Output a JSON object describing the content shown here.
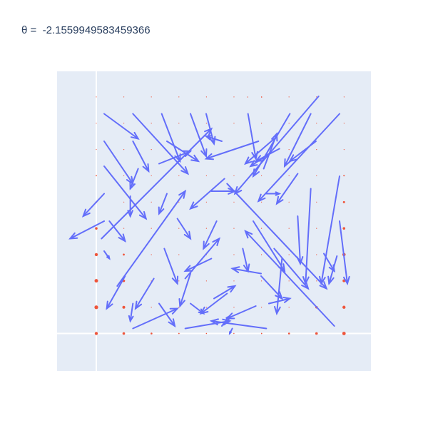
{
  "title": "θ =  -2.1559949583459366",
  "colors": {
    "paper": "#ffffff",
    "plot_bg": "#e5ecf6",
    "zeroline": "#ffffff",
    "arrow": "#636efa",
    "point": "#ef553b",
    "title_text": "#2a3f5f"
  },
  "chart_data": {
    "type": "quiver",
    "title": "θ =  -2.1559949583459366",
    "xlim": [
      -0.15,
      1.05
    ],
    "ylim": [
      -0.15,
      1.05
    ],
    "grid": false,
    "zeroline": true,
    "grid_points_x": [
      0,
      0.1053,
      0.2105,
      0.3158,
      0.4211,
      0.5263,
      0.6316,
      0.7368,
      0.8421,
      0.9474
    ],
    "grid_points_y": [
      0,
      0.1053,
      0.2105,
      0.3158,
      0.4211,
      0.5263,
      0.6316,
      0.7368,
      0.8421,
      0.9474
    ],
    "points": [
      {
        "x": 0,
        "y": 0,
        "s": 2.2
      },
      {
        "x": 0.105,
        "y": 0,
        "s": 1.8
      },
      {
        "x": 0.211,
        "y": 0,
        "s": 1.3
      },
      {
        "x": 0.316,
        "y": 0,
        "s": 0.9
      },
      {
        "x": 0.421,
        "y": 0,
        "s": 0.7
      },
      {
        "x": 0.526,
        "y": 0,
        "s": 0.7
      },
      {
        "x": 0.632,
        "y": 0,
        "s": 0.9
      },
      {
        "x": 0.737,
        "y": 0,
        "s": 1.3
      },
      {
        "x": 0.842,
        "y": 0,
        "s": 1.8
      },
      {
        "x": 0.947,
        "y": 0,
        "s": 2.4
      },
      {
        "x": 0,
        "y": 0.105,
        "s": 2.6
      },
      {
        "x": 0.105,
        "y": 0.105,
        "s": 2.0
      },
      {
        "x": 0.842,
        "y": 0.105,
        "s": 1.7
      },
      {
        "x": 0.947,
        "y": 0.105,
        "s": 2.2
      },
      {
        "x": 0,
        "y": 0.211,
        "s": 2.5
      },
      {
        "x": 0.105,
        "y": 0.211,
        "s": 1.8
      },
      {
        "x": 0.947,
        "y": 0.211,
        "s": 2.0
      },
      {
        "x": 0,
        "y": 0.316,
        "s": 2.2
      },
      {
        "x": 0.105,
        "y": 0.316,
        "s": 1.4
      },
      {
        "x": 0.947,
        "y": 0.316,
        "s": 2.3
      },
      {
        "x": 0,
        "y": 0.421,
        "s": 1.8
      },
      {
        "x": 0.947,
        "y": 0.421,
        "s": 1.8
      },
      {
        "x": 0,
        "y": 0.526,
        "s": 1.2
      },
      {
        "x": 0.947,
        "y": 0.526,
        "s": 1.5
      },
      {
        "x": 0,
        "y": 0.632,
        "s": 0.9
      },
      {
        "x": 0.947,
        "y": 0.632,
        "s": 1.0
      },
      {
        "x": 0.632,
        "y": 0.947,
        "s": 0.8
      },
      {
        "x": 0.579,
        "y": 0.947,
        "s": 0.7
      }
    ],
    "vectors": [
      {
        "x": 0.03,
        "y": 0.88,
        "u": 0.13,
        "v": -0.1
      },
      {
        "x": 0.14,
        "y": 0.88,
        "u": 0.21,
        "v": -0.24
      },
      {
        "x": 0.25,
        "y": 0.88,
        "u": 0.07,
        "v": -0.19
      },
      {
        "x": 0.36,
        "y": 0.88,
        "u": 0.06,
        "v": -0.17
      },
      {
        "x": 0.42,
        "y": 0.88,
        "u": 0.03,
        "v": -0.12
      },
      {
        "x": 0.58,
        "y": 0.88,
        "u": 0.03,
        "v": -0.18
      },
      {
        "x": 0.74,
        "y": 0.88,
        "u": -0.14,
        "v": -0.25
      },
      {
        "x": 0.82,
        "y": 0.88,
        "u": -0.1,
        "v": -0.21
      },
      {
        "x": 0.93,
        "y": 0.88,
        "u": -0.31,
        "v": -0.35
      },
      {
        "x": 0.03,
        "y": 0.77,
        "u": 0.11,
        "v": -0.17
      },
      {
        "x": 0.14,
        "y": 0.77,
        "u": 0.06,
        "v": -0.12
      },
      {
        "x": 0.27,
        "y": 0.77,
        "u": 0.12,
        "v": -0.08
      },
      {
        "x": 0.48,
        "y": 0.77,
        "u": -0.06,
        "v": 0.02
      },
      {
        "x": 0.62,
        "y": 0.77,
        "u": -0.2,
        "v": -0.07
      },
      {
        "x": 0.84,
        "y": 0.77,
        "u": -0.1,
        "v": -0.08
      },
      {
        "x": 0.03,
        "y": 0.67,
        "u": 0.16,
        "v": -0.21
      },
      {
        "x": 0.16,
        "y": 0.66,
        "u": -0.03,
        "v": -0.08
      },
      {
        "x": 0.24,
        "y": 0.68,
        "u": 0.12,
        "v": 0.05
      },
      {
        "x": 0.66,
        "y": 0.72,
        "u": -0.07,
        "v": -0.05
      },
      {
        "x": 0.77,
        "y": 0.64,
        "u": -0.08,
        "v": -0.12
      },
      {
        "x": 0.93,
        "y": 0.63,
        "u": -0.07,
        "v": -0.43
      },
      {
        "x": 0.03,
        "y": 0.56,
        "u": -0.08,
        "v": -0.09
      },
      {
        "x": 0.13,
        "y": 0.55,
        "u": 0.0,
        "v": -0.08
      },
      {
        "x": 0.27,
        "y": 0.56,
        "u": -0.03,
        "v": -0.08
      },
      {
        "x": 0.44,
        "y": 0.57,
        "u": 0.09,
        "v": 0.0
      },
      {
        "x": 0.65,
        "y": 0.56,
        "u": 0.05,
        "v": 0.0
      },
      {
        "x": 0.82,
        "y": 0.58,
        "u": -0.02,
        "v": -0.38
      },
      {
        "x": 0.03,
        "y": 0.45,
        "u": -0.13,
        "v": -0.07
      },
      {
        "x": 0.05,
        "y": 0.45,
        "u": 0.06,
        "v": -0.08
      },
      {
        "x": 0.31,
        "y": 0.46,
        "u": 0.05,
        "v": -0.08
      },
      {
        "x": 0.46,
        "y": 0.45,
        "u": -0.05,
        "v": -0.11
      },
      {
        "x": 0.6,
        "y": 0.45,
        "u": 0.12,
        "v": -0.2
      },
      {
        "x": 0.77,
        "y": 0.47,
        "u": 0.01,
        "v": -0.19
      },
      {
        "x": 0.93,
        "y": 0.45,
        "u": 0.03,
        "v": -0.25
      },
      {
        "x": 0.03,
        "y": 0.33,
        "u": 0.02,
        "v": -0.03
      },
      {
        "x": 0.26,
        "y": 0.34,
        "u": 0.05,
        "v": -0.14
      },
      {
        "x": 0.56,
        "y": 0.34,
        "u": 0.02,
        "v": -0.09
      },
      {
        "x": 0.68,
        "y": 0.34,
        "u": 0.13,
        "v": -0.16
      },
      {
        "x": 0.87,
        "y": 0.32,
        "u": 0.04,
        "v": -0.07
      },
      {
        "x": 0.92,
        "y": 0.31,
        "u": -0.03,
        "v": -0.11
      },
      {
        "x": 0.11,
        "y": 0.23,
        "u": -0.07,
        "v": -0.13
      },
      {
        "x": 0.22,
        "y": 0.22,
        "u": -0.07,
        "v": -0.12
      },
      {
        "x": 0.36,
        "y": 0.24,
        "u": -0.04,
        "v": -0.13
      },
      {
        "x": 0.63,
        "y": 0.23,
        "u": 0.08,
        "v": -0.09
      },
      {
        "x": 0.71,
        "y": 0.3,
        "u": -0.02,
        "v": -0.22
      },
      {
        "x": 0.14,
        "y": 0.12,
        "u": -0.01,
        "v": -0.07
      },
      {
        "x": 0.24,
        "y": 0.12,
        "u": 0.06,
        "v": -0.09
      },
      {
        "x": 0.36,
        "y": 0.12,
        "u": 0.05,
        "v": -0.04
      },
      {
        "x": 0.5,
        "y": 0.16,
        "u": -0.1,
        "v": -0.08
      },
      {
        "x": 0.61,
        "y": 0.11,
        "u": -0.11,
        "v": -0.05
      },
      {
        "x": 0.66,
        "y": 0.12,
        "u": 0.08,
        "v": 0.02
      },
      {
        "x": 0.14,
        "y": 0.02,
        "u": 0.17,
        "v": 0.08
      },
      {
        "x": 0.34,
        "y": 0.02,
        "u": 0.17,
        "v": 0.03
      },
      {
        "x": 0.48,
        "y": 0.03,
        "u": 0.03,
        "v": 0.04
      },
      {
        "x": 0.52,
        "y": 0.02,
        "u": -0.01,
        "v": -0.02
      },
      {
        "x": 0.65,
        "y": 0.02,
        "u": -0.21,
        "v": 0.03
      },
      {
        "x": 0.91,
        "y": 0.03,
        "u": -0.34,
        "v": 0.38
      },
      {
        "x": 0.45,
        "y": 0.14,
        "u": 0.08,
        "v": 0.05
      },
      {
        "x": 0.02,
        "y": 0.38,
        "u": 0.42,
        "v": 0.44
      },
      {
        "x": 0.08,
        "y": 0.19,
        "u": 0.26,
        "v": 0.38
      },
      {
        "x": 0.49,
        "y": 0.62,
        "u": -0.13,
        "v": -0.12
      },
      {
        "x": 0.5,
        "y": 0.6,
        "u": 0.38,
        "v": -0.42
      },
      {
        "x": 0.64,
        "y": 0.66,
        "u": 0.05,
        "v": 0.14
      },
      {
        "x": 0.85,
        "y": 0.95,
        "u": -0.32,
        "v": -0.39
      },
      {
        "x": 0.68,
        "y": 0.78,
        "u": -0.11,
        "v": -0.1
      },
      {
        "x": 0.7,
        "y": 0.74,
        "u": -0.09,
        "v": -0.05
      },
      {
        "x": 0.34,
        "y": 0.22,
        "u": 0.13,
        "v": 0.16
      },
      {
        "x": 0.44,
        "y": 0.3,
        "u": -0.1,
        "v": -0.05
      },
      {
        "x": 0.63,
        "y": 0.24,
        "u": -0.11,
        "v": 0.02
      }
    ]
  }
}
